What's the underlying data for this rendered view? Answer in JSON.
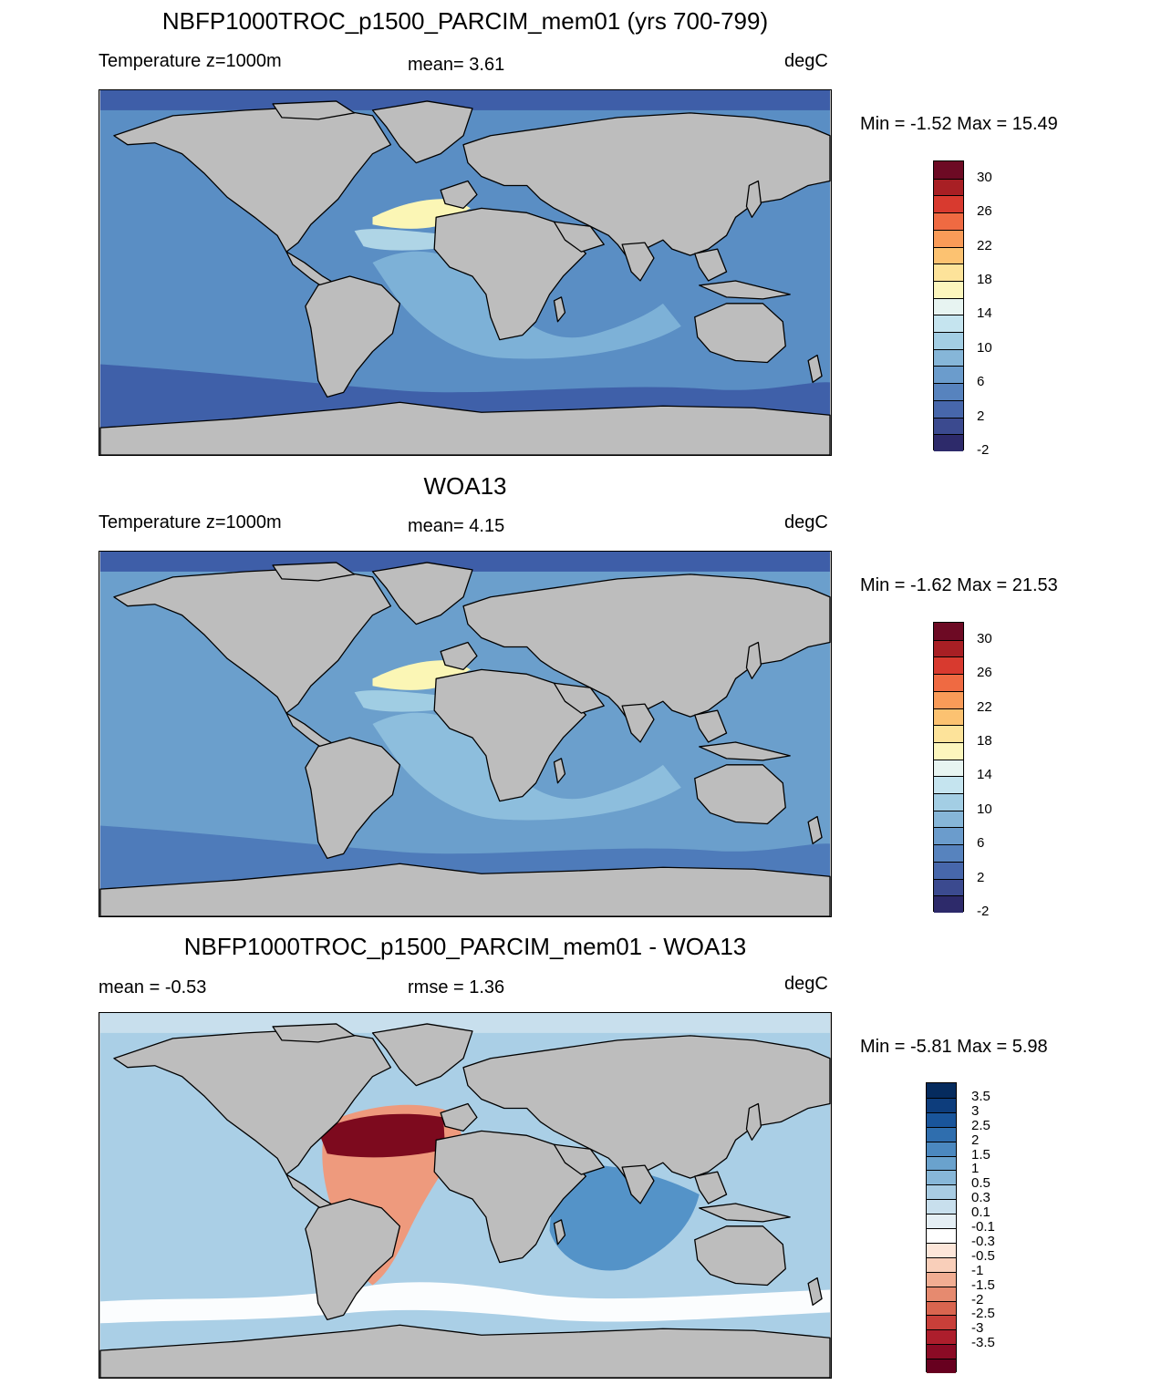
{
  "panels": [
    {
      "title": "NBFP1000TROC_p1500_PARCIM_mem01 (yrs 700-799)",
      "left_label": "Temperature z=1000m",
      "center_label": "mean=   3.61",
      "right_label": "degC",
      "minmax": "Min =  -1.52 Max =  15.49",
      "ocean_base": "#5a8ec4",
      "features": [
        {
          "kind": "deep",
          "color": "#3e5ea8"
        },
        {
          "kind": "tropical",
          "color": "#7fb3d8"
        },
        {
          "kind": "natl",
          "color": "#fbf6b5"
        },
        {
          "kind": "natl2",
          "color": "#b8ddea"
        }
      ]
    },
    {
      "title": "WOA13",
      "left_label": "Temperature z=1000m",
      "center_label": "mean=   4.15",
      "right_label": "degC",
      "minmax": "Min =  -1.62 Max =  21.53",
      "ocean_base": "#6b9fcc",
      "features": [
        {
          "kind": "deep",
          "color": "#4d79b8"
        },
        {
          "kind": "tropical",
          "color": "#8fc0dd"
        },
        {
          "kind": "natl",
          "color": "#fbf6b5"
        },
        {
          "kind": "natl2",
          "color": "#a6d1e5"
        }
      ]
    },
    {
      "title": "NBFP1000TROC_p1500_PARCIM_mem01 - WOA13",
      "left_label": "mean =  -0.53",
      "center_label": "rmse =   1.36",
      "right_label": "degC",
      "minmax": "Min =  -5.81 Max =   5.98",
      "ocean_base": "#aacfe6",
      "features": [
        {
          "kind": "diff-ind",
          "color": "#4a8cc4"
        },
        {
          "kind": "diff-atl",
          "color": "#ee9a7d"
        },
        {
          "kind": "diff-atl-core",
          "color": "#7d0a1e"
        },
        {
          "kind": "diff-so",
          "color": "#ffffff"
        }
      ]
    }
  ],
  "colorbar_temp": {
    "colors": [
      "#2d2a6a",
      "#3b4a8f",
      "#4767ab",
      "#5783be",
      "#6b9ccc",
      "#86b6d8",
      "#a3cee4",
      "#c5e4ef",
      "#e7f4f1",
      "#fcf6bd",
      "#fde39a",
      "#fcc271",
      "#f99b58",
      "#ef6a42",
      "#d83a2f",
      "#a81f24",
      "#6d0a24"
    ],
    "labels": [
      "30",
      "26",
      "22",
      "18",
      "14",
      "10",
      "6",
      "2",
      "-2"
    ]
  },
  "colorbar_diff": {
    "colors": [
      "#67001f",
      "#8b0b25",
      "#ad1e2c",
      "#c83f39",
      "#d9654f",
      "#e68a6f",
      "#f1ad92",
      "#f9cfba",
      "#fde6d9",
      "#ffffff",
      "#e4eef4",
      "#c8dfed",
      "#a8cce3",
      "#87b7d8",
      "#6aa2cd",
      "#4b88bf",
      "#2f6eae",
      "#19559b",
      "#0d3d7c",
      "#052b5e"
    ],
    "labels": [
      "3.5",
      "3",
      "2.5",
      "2",
      "1.5",
      "1",
      "0.5",
      "0.3",
      "0.1",
      "-0.1",
      "-0.3",
      "-0.5",
      "-1",
      "-1.5",
      "-2",
      "-2.5",
      "-3",
      "-3.5"
    ]
  }
}
